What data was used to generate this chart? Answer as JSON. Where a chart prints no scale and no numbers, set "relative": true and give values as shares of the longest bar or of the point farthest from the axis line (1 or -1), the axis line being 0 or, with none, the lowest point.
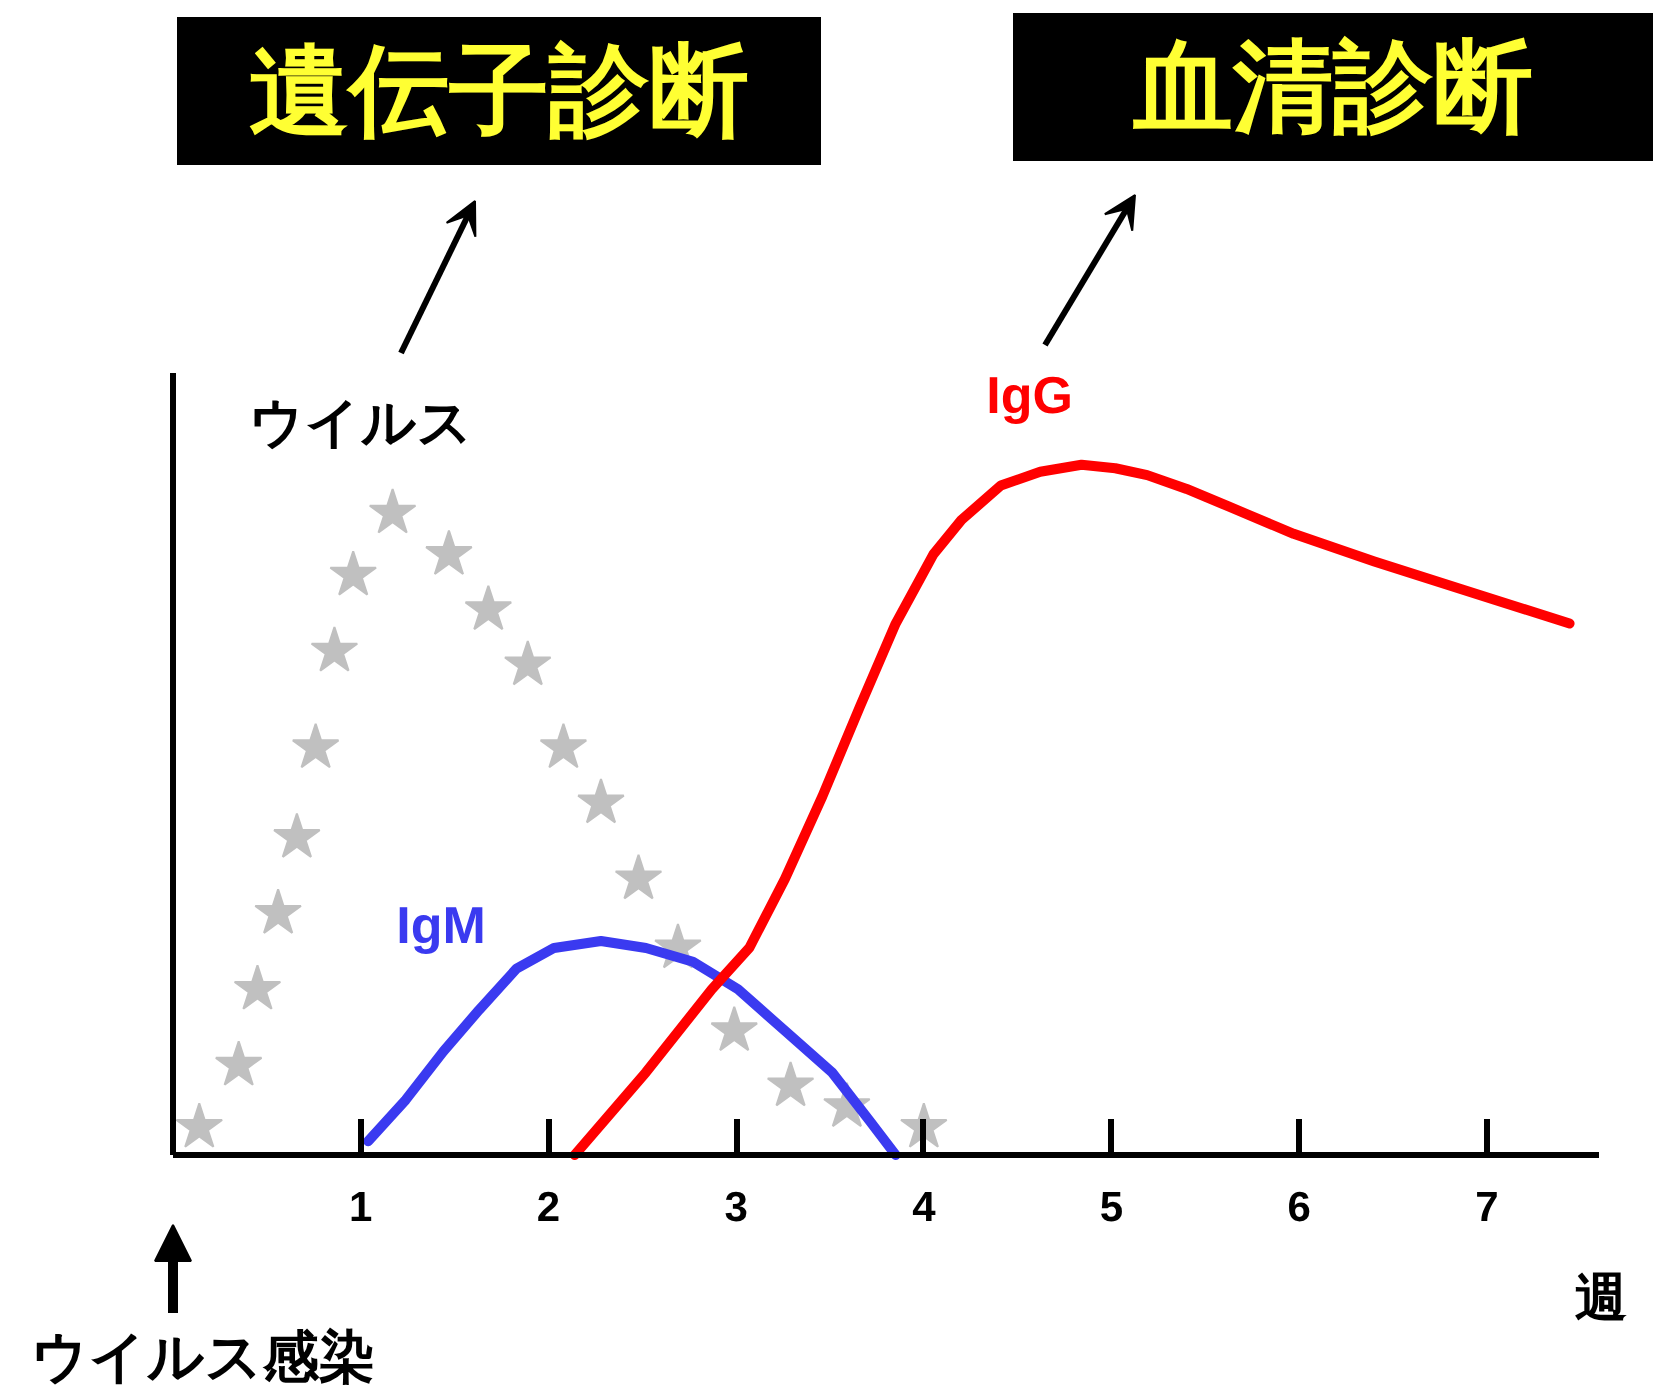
{
  "chart_data": {
    "type": "line",
    "relative": true,
    "xlim": [
      0,
      7.6
    ],
    "xticks": [
      1,
      2,
      3,
      4,
      5,
      6,
      7
    ],
    "xlabel": "週",
    "series": [
      {
        "name": "ウイルス",
        "type": "scatter",
        "marker": "star",
        "color": "#c0c0c0",
        "x": [
          0.14,
          0.35,
          0.45,
          0.56,
          0.66,
          0.76,
          0.86,
          0.96,
          1.17,
          1.47,
          1.68,
          1.89,
          2.08,
          2.28,
          2.48,
          2.69,
          2.99,
          3.29,
          3.59,
          4.0
        ],
        "values": [
          0.04,
          0.13,
          0.24,
          0.35,
          0.46,
          0.59,
          0.73,
          0.84,
          0.93,
          0.87,
          0.79,
          0.71,
          0.59,
          0.51,
          0.4,
          0.3,
          0.18,
          0.1,
          0.07,
          0.04
        ]
      },
      {
        "name": "IgM",
        "color": "#3a3af0",
        "x": [
          1.04,
          1.24,
          1.44,
          1.63,
          1.83,
          2.03,
          2.28,
          2.52,
          2.77,
          3.01,
          3.26,
          3.51,
          3.71,
          3.85
        ],
        "values": [
          0.02,
          0.08,
          0.15,
          0.21,
          0.27,
          0.3,
          0.31,
          0.3,
          0.28,
          0.24,
          0.18,
          0.12,
          0.05,
          0
        ]
      },
      {
        "name": "IgG",
        "color": "#ff0000",
        "x": [
          2.14,
          2.52,
          2.87,
          3.07,
          3.26,
          3.46,
          3.66,
          3.85,
          4.05,
          4.2,
          4.41,
          4.62,
          4.84,
          5.02,
          5.19,
          5.4,
          5.62,
          5.97,
          6.4,
          6.86,
          7.44
        ],
        "values": [
          0,
          0.12,
          0.24,
          0.3,
          0.4,
          0.52,
          0.65,
          0.77,
          0.87,
          0.92,
          0.97,
          0.99,
          1,
          0.995,
          0.985,
          0.965,
          0.94,
          0.9,
          0.86,
          0.82,
          0.77
        ]
      }
    ],
    "annotations": [
      "遺伝子診断",
      "血清診断",
      "ウイルス感染"
    ]
  }
}
